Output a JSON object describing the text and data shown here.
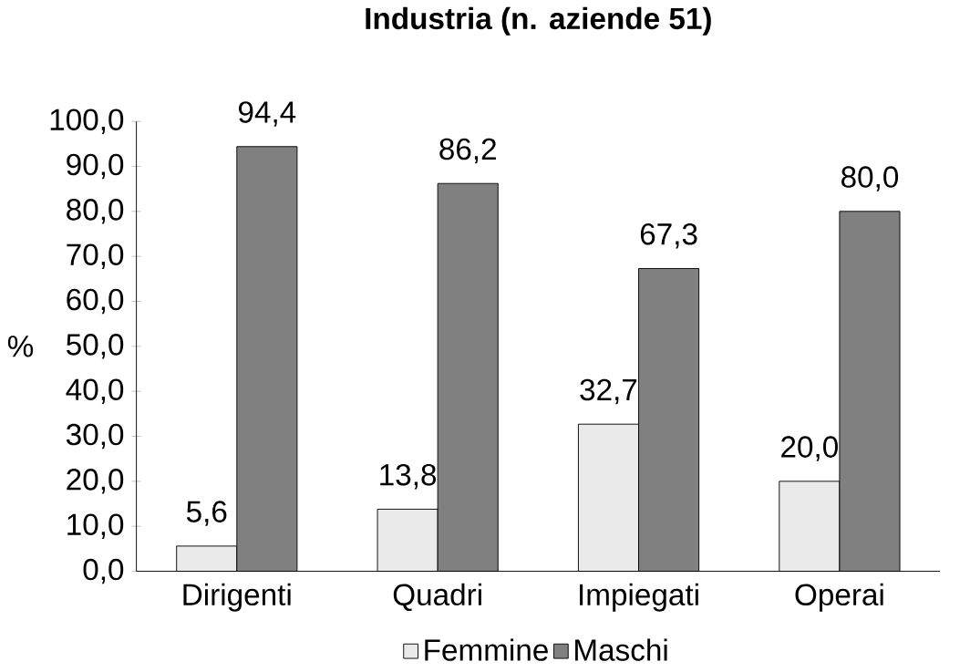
{
  "chart_data": {
    "type": "bar",
    "title": "**Industria (n. aziende 51)**",
    "ylabel": "%",
    "categories": [
      "Dirigenti",
      "Quadri",
      "Impiegati",
      "Operai"
    ],
    "series": [
      {
        "name": "Femmine",
        "color": "#eaeaea",
        "values": [
          5.6,
          13.8,
          32.7,
          20.0
        ],
        "value_labels": [
          "5,6",
          "13,8",
          "32,7",
          "20,0"
        ]
      },
      {
        "name": "Maschi",
        "color": "#808080",
        "values": [
          94.4,
          86.2,
          67.3,
          80.0
        ],
        "value_labels": [
          "94,4",
          "86,2",
          "67,3",
          "80,0"
        ]
      }
    ],
    "ylim": [
      0,
      100
    ],
    "yticks": [
      {
        "value": 0,
        "label": "0,0"
      },
      {
        "value": 10,
        "label": "10,0"
      },
      {
        "value": 20,
        "label": "20,0"
      },
      {
        "value": 30,
        "label": "30,0"
      },
      {
        "value": 40,
        "label": "40,0"
      },
      {
        "value": 50,
        "label": "50,0"
      },
      {
        "value": 60,
        "label": "60,0"
      },
      {
        "value": 70,
        "label": "70,0"
      },
      {
        "value": 80,
        "label": "80,0"
      },
      {
        "value": 90,
        "label": "90,0"
      },
      {
        "value": 100,
        "label": "100,0"
      }
    ],
    "legend": "bottom",
    "grid": false
  }
}
